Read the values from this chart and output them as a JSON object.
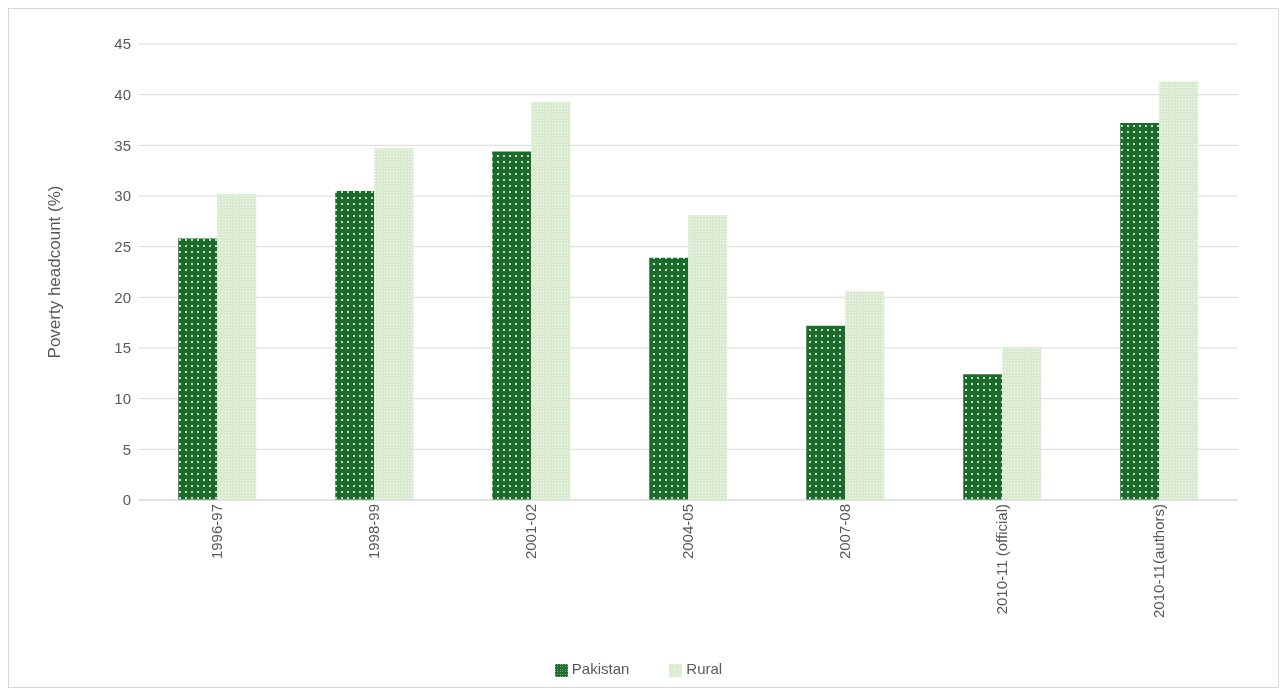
{
  "chart_data": {
    "type": "bar",
    "ylabel": "Poverty headcount (%)",
    "categories": [
      "1996-97",
      "1998-99",
      "2001-02",
      "2004-05",
      "2007-08",
      "2010-11 (official)",
      "2010-11(authors)"
    ],
    "series": [
      {
        "name": "Pakistan",
        "color": "#1d6b2b",
        "values": [
          25.8,
          30.5,
          34.4,
          23.9,
          17.2,
          12.4,
          37.2
        ]
      },
      {
        "name": "Rural",
        "color": "#d8ebcf",
        "values": [
          30.2,
          34.7,
          39.3,
          28.1,
          20.6,
          15.1,
          41.3
        ]
      }
    ],
    "ylim": [
      0,
      45
    ],
    "yticks": [
      0,
      5,
      10,
      15,
      20,
      25,
      30,
      35,
      40,
      45
    ],
    "grid": "y",
    "legend": "bottom"
  }
}
